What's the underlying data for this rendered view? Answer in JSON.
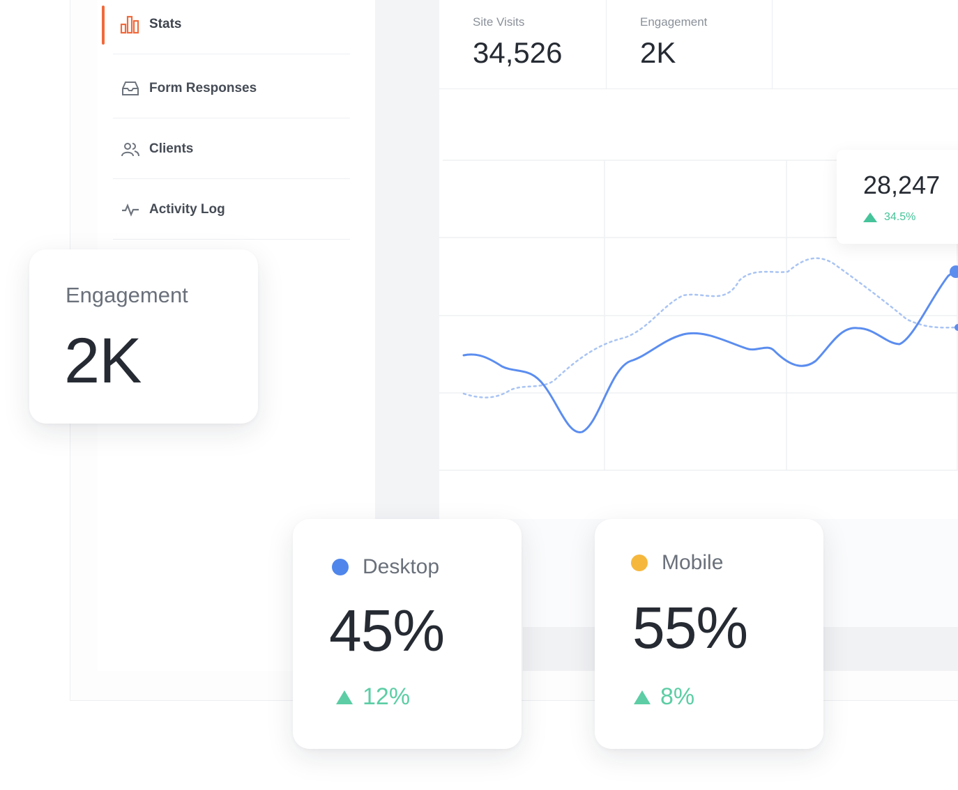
{
  "sidebar": {
    "items": [
      {
        "label": "Stats",
        "icon": "bar-chart-icon",
        "active": true
      },
      {
        "label": "Form Responses",
        "icon": "inbox-icon"
      },
      {
        "label": "Clients",
        "icon": "users-icon"
      },
      {
        "label": "Activity Log",
        "icon": "activity-icon"
      }
    ]
  },
  "stats": [
    {
      "label": "Site Visits",
      "value": "34,526"
    },
    {
      "label": "Engagement",
      "value": "2K"
    }
  ],
  "tooltip": {
    "value": "28,247",
    "change": "34.5%"
  },
  "cards": {
    "engagement": {
      "label": "Engagement",
      "value": "2K"
    },
    "desktop": {
      "label": "Desktop",
      "value": "45%",
      "change": "12%",
      "color": "#4f86ec"
    },
    "mobile": {
      "label": "Mobile",
      "value": "55%",
      "change": "8%",
      "color": "#f5b83d"
    }
  },
  "colors": {
    "accent": "#f06a3c",
    "positive": "#5ccda5",
    "line": "#5b8def"
  }
}
